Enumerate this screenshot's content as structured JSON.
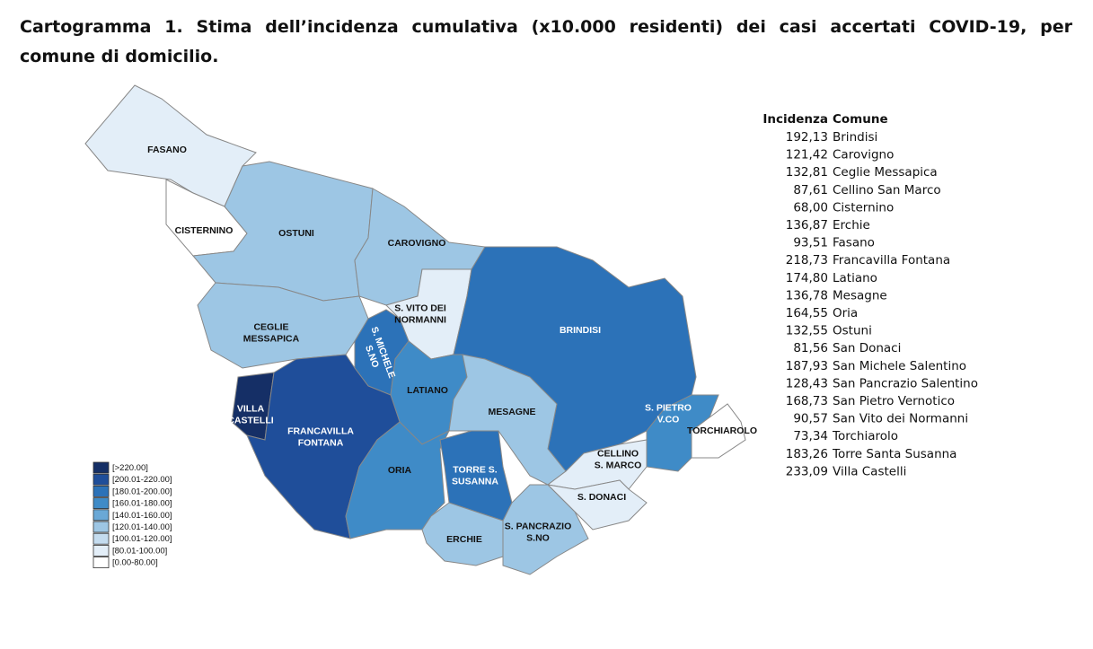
{
  "title": "Cartogramma 1. Stima dell’incidenza cumulativa (x10.000 residenti) dei casi accertati COVID-19, per comune di domicilio.",
  "legend": [
    {
      "label": "[>220.00]",
      "color": "#152f66"
    },
    {
      "label": "[200.01-220.00]",
      "color": "#1f4e9a"
    },
    {
      "label": "[180.01-200.00]",
      "color": "#2c72b8"
    },
    {
      "label": "[160.01-180.00]",
      "color": "#3f8bc7"
    },
    {
      "label": "[140.01-160.00]",
      "color": "#6aa8d6"
    },
    {
      "label": "[120.01-140.00]",
      "color": "#9dc6e4"
    },
    {
      "label": "[100.01-120.00]",
      "color": "#c4dcef"
    },
    {
      "label": "[80.01-100.00]",
      "color": "#e3eef8"
    },
    {
      "label": "[0.00-80.00]",
      "color": "#ffffff"
    }
  ],
  "map": {
    "regions": [
      {
        "label": [
          "FASANO"
        ],
        "color": "#e3eef8"
      },
      {
        "label": [
          "CISTERNINO"
        ],
        "color": "#ffffff"
      },
      {
        "label": [
          "OSTUNI"
        ],
        "color": "#9dc6e4"
      },
      {
        "label": [
          "CAROVIGNO"
        ],
        "color": "#9dc6e4"
      },
      {
        "label": [
          "CEGLIE",
          "MESSAPICA"
        ],
        "color": "#9dc6e4"
      },
      {
        "label": [
          "S. VITO DEI",
          "NORMANNI"
        ],
        "color": "#e3eef8"
      },
      {
        "label": [
          "S. MICHELE",
          "S.NO"
        ],
        "color": "#2c72b8"
      },
      {
        "label": [
          "BRINDISI"
        ],
        "color": "#2c72b8"
      },
      {
        "label": [
          "LATIANO"
        ],
        "color": "#3f8bc7"
      },
      {
        "label": [
          "MESAGNE"
        ],
        "color": "#9dc6e4"
      },
      {
        "label": [
          "VILLA",
          "CASTELLI"
        ],
        "color": "#152f66"
      },
      {
        "label": [
          "FRANCAVILLA",
          "FONTANA"
        ],
        "color": "#1f4e9a"
      },
      {
        "label": [
          "ORIA"
        ],
        "color": "#3f8bc7"
      },
      {
        "label": [
          "TORRE S.",
          "SUSANNA"
        ],
        "color": "#2c72b8"
      },
      {
        "label": [
          "ERCHIE"
        ],
        "color": "#9dc6e4"
      },
      {
        "label": [
          "S. PANCRAZIO",
          "S.NO"
        ],
        "color": "#9dc6e4"
      },
      {
        "label": [
          "CELLINO",
          "S. MARCO"
        ],
        "color": "#e3eef8"
      },
      {
        "label": [
          "S. DONACI"
        ],
        "color": "#e3eef8"
      },
      {
        "label": [
          "S. PIETRO",
          "V.CO"
        ],
        "color": "#3f8bc7"
      },
      {
        "label": [
          "TORCHIAROLO"
        ],
        "color": "#ffffff"
      }
    ]
  },
  "table": {
    "header": [
      "Incidenza",
      "Comune"
    ],
    "rows": [
      [
        "192,13",
        "Brindisi"
      ],
      [
        "121,42",
        "Carovigno"
      ],
      [
        "132,81",
        "Ceglie Messapica"
      ],
      [
        "87,61",
        "Cellino San Marco"
      ],
      [
        "68,00",
        "Cisternino"
      ],
      [
        "136,87",
        "Erchie"
      ],
      [
        "93,51",
        "Fasano"
      ],
      [
        "218,73",
        "Francavilla Fontana"
      ],
      [
        "174,80",
        "Latiano"
      ],
      [
        "136,78",
        "Mesagne"
      ],
      [
        "164,55",
        "Oria"
      ],
      [
        "132,55",
        "Ostuni"
      ],
      [
        "81,56",
        "San Donaci"
      ],
      [
        "187,93",
        "San Michele Salentino"
      ],
      [
        "128,43",
        "San Pancrazio Salentino"
      ],
      [
        "168,73",
        "San Pietro Vernotico"
      ],
      [
        "90,57",
        "San Vito dei Normanni"
      ],
      [
        "73,34",
        "Torchiarolo"
      ],
      [
        "183,26",
        "Torre Santa Susanna"
      ],
      [
        "233,09",
        "Villa Castelli"
      ]
    ]
  }
}
